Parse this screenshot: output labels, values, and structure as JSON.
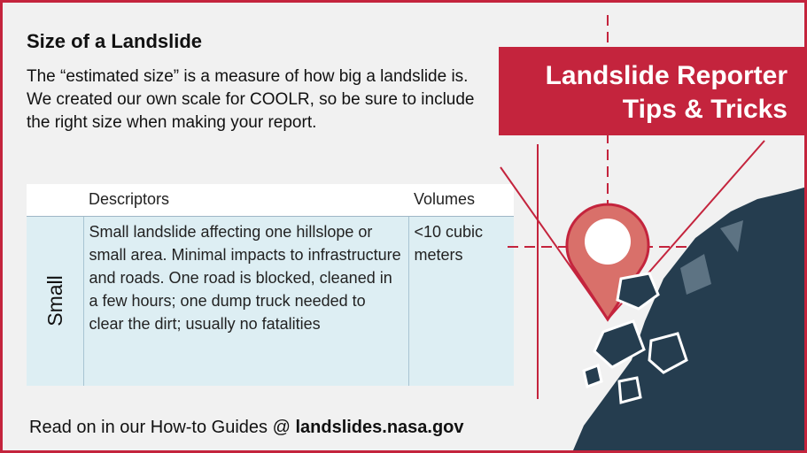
{
  "title": "Size of a Landslide",
  "intro": "The “estimated size” is a measure of how big a landslide is. We created our own scale for COOLR, so be sure to include the right size when making your report.",
  "table": {
    "headers": [
      "",
      "Descriptors",
      "Volumes"
    ],
    "rows": [
      {
        "category": "Small",
        "descriptor": "Small landslide affecting one hillslope or small area. Minimal impacts to infrastructure and roads. One road is blocked, cleaned in a few hours; one dump truck needed to clear the dirt; usually no fatalities",
        "volume": "<10 cubic meters"
      }
    ]
  },
  "banner": {
    "line1": "Landslide Reporter",
    "line2": "Tips & Tricks"
  },
  "footer": {
    "prefix": "Read on in our How-to Guides @ ",
    "link": "landslides.nasa.gov"
  },
  "icons": [
    "map-pin-icon",
    "crosshair-lines",
    "mountain-rock-icon",
    "falling-rock-icon"
  ],
  "colors": {
    "brand_red": "#c4243d",
    "pin_fill": "#d9706a",
    "rock_dark": "#253d4f",
    "table_fill": "#ddeef3"
  }
}
